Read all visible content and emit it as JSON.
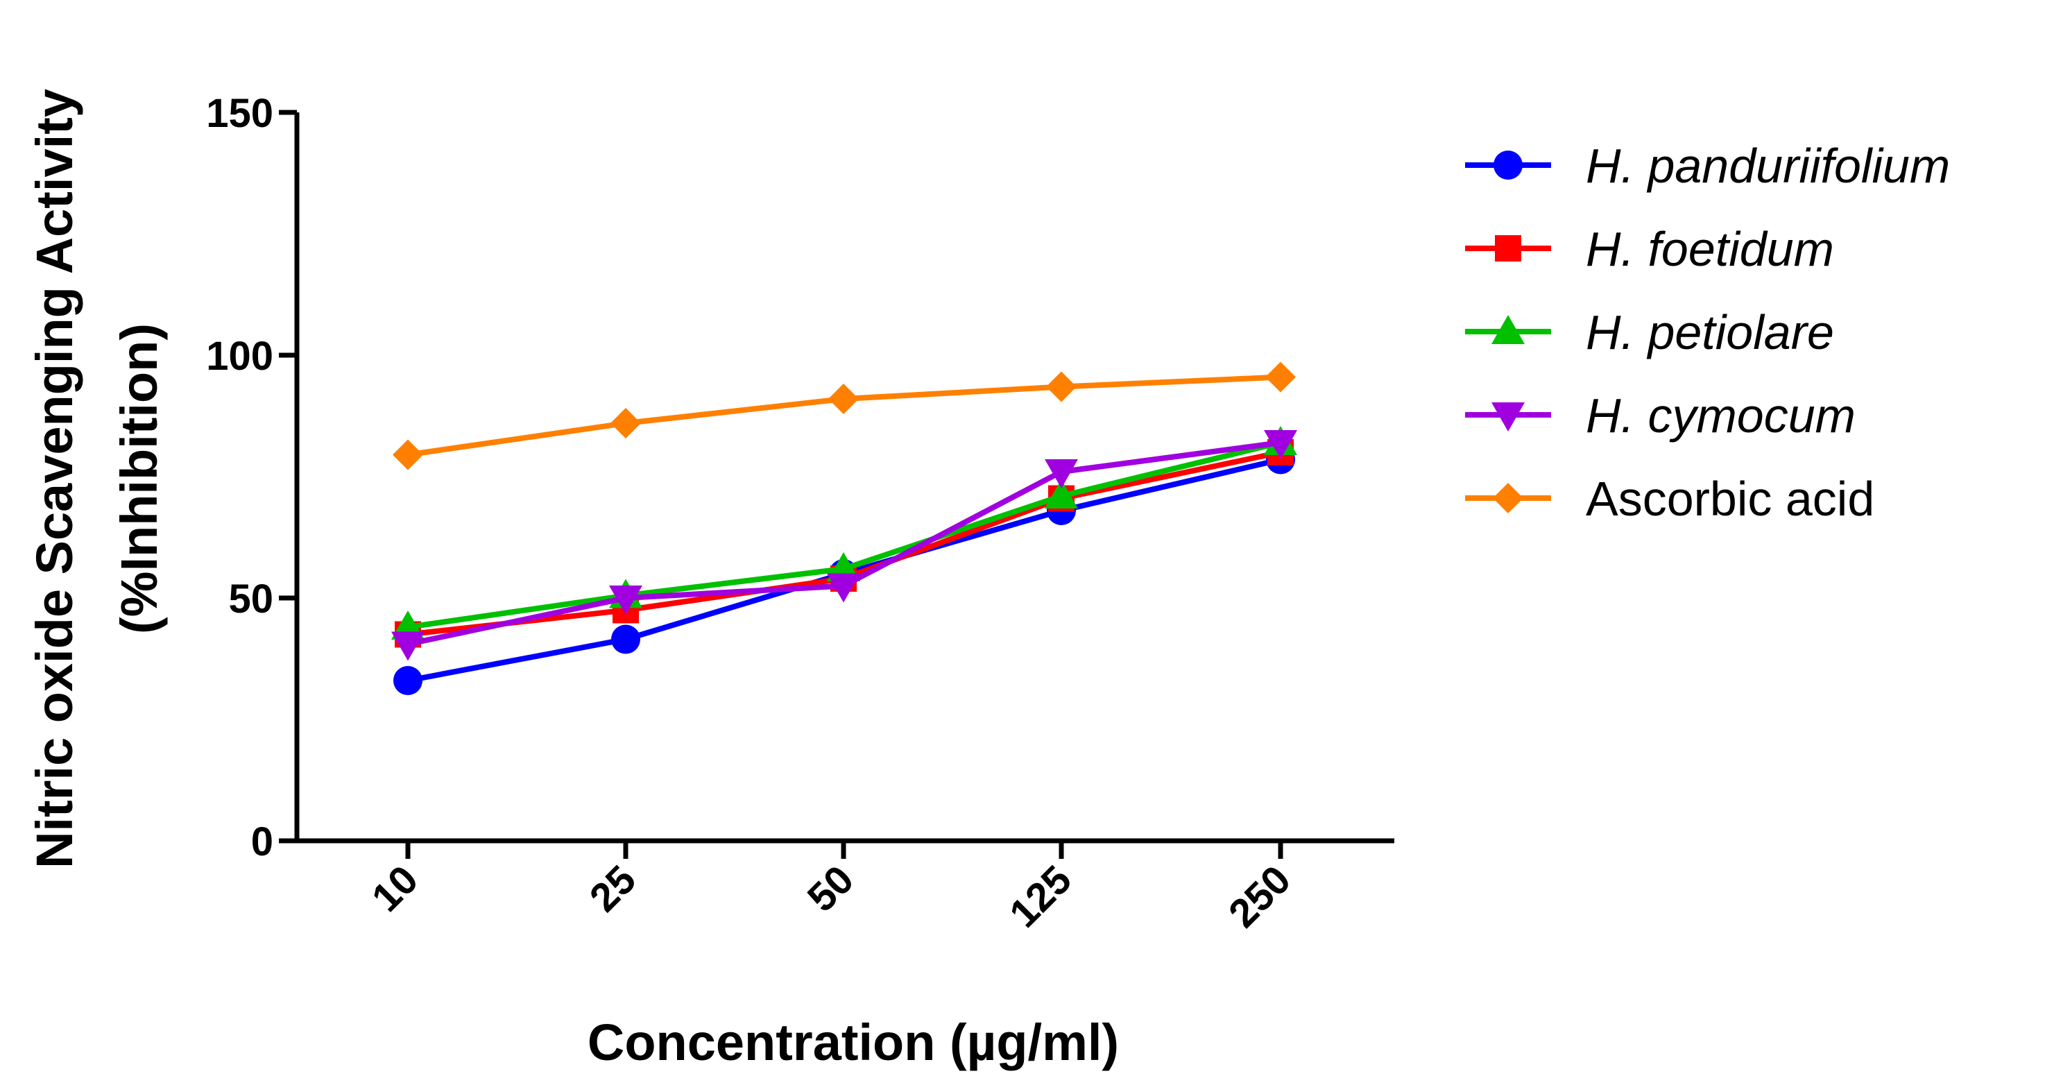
{
  "chart_data": {
    "type": "line",
    "title": "",
    "xlabel": "Concentration (µg/ml)",
    "ylabel": "Nitric oxide Scavenging Activity",
    "ylabel_line2": "(%Inhibition)",
    "categories": [
      "10",
      "25",
      "50",
      "125",
      "250"
    ],
    "ylim": [
      0,
      150
    ],
    "yticks": [
      "0",
      "50",
      "100",
      "150"
    ],
    "grid": false,
    "legend_position": "right",
    "series": [
      {
        "name": "H. panduriifolium",
        "color": "#0000ff",
        "marker": "circle",
        "italic": true,
        "values": [
          33,
          41.5,
          55,
          68,
          78.5
        ]
      },
      {
        "name": "H. foetidum",
        "color": "#ff0000",
        "marker": "square",
        "italic": true,
        "values": [
          42.5,
          47.5,
          54,
          70.5,
          80
        ]
      },
      {
        "name": "H. petiolare",
        "color": "#00c000",
        "marker": "triangle-up",
        "italic": true,
        "values": [
          44,
          50.5,
          56,
          71,
          82
        ]
      },
      {
        "name": "H. cymocum",
        "color": "#a000e0",
        "marker": "triangle-down",
        "italic": true,
        "values": [
          40.5,
          50,
          52.5,
          76,
          82
        ]
      },
      {
        "name": "Ascorbic acid",
        "color": "#ff8000",
        "marker": "diamond",
        "italic": false,
        "values": [
          79.5,
          86,
          91,
          93.5,
          95.5
        ]
      }
    ]
  }
}
